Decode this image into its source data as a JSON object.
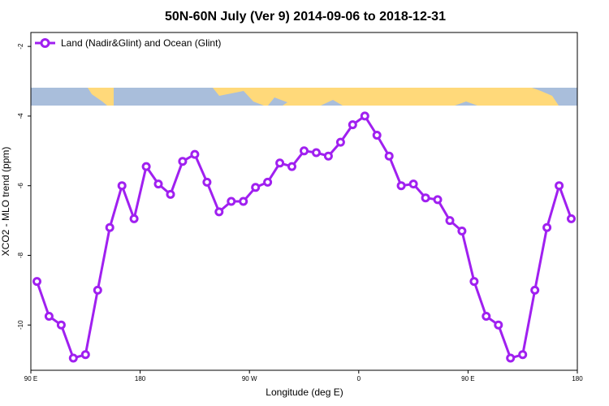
{
  "chart_data": {
    "type": "line",
    "title": "50N-60N July (Ver 9)   2014-09-06 to 2018-12-31",
    "xlabel": "Longitude (deg E)",
    "ylabel": "XCO2 - MLO trend (ppm)",
    "x_tick_labels": [
      "90 E",
      "180",
      "90 W",
      "0",
      "90 E",
      "180"
    ],
    "x_tick_values": [
      90,
      180,
      270,
      360,
      450,
      540
    ],
    "y_tick_labels": [
      "-2",
      "-4",
      "-6",
      "-8",
      "-10"
    ],
    "y_tick_values": [
      -2,
      -4,
      -6,
      -8,
      -10
    ],
    "xlim": [
      90,
      540
    ],
    "ylim": [
      -11.3,
      -1.6
    ],
    "legend_position": "top-left",
    "series": [
      {
        "name": "Land (Nadir&Glint) and Ocean (Glint)",
        "color": "#a020f0",
        "x": [
          95,
          105,
          115,
          125,
          135,
          145,
          155,
          165,
          175,
          185,
          195,
          205,
          215,
          225,
          235,
          245,
          255,
          265,
          275,
          285,
          295,
          305,
          315,
          325,
          335,
          345,
          355,
          365,
          375,
          385,
          395,
          405,
          415,
          425,
          435,
          445,
          455,
          465,
          475,
          485,
          495,
          505,
          515,
          525,
          535
        ],
        "y": [
          -8.75,
          -9.75,
          -10.0,
          -10.95,
          -10.85,
          -9.0,
          -7.2,
          -6.0,
          -6.95,
          -5.45,
          -5.95,
          -6.25,
          -5.3,
          -5.1,
          -5.9,
          -6.75,
          -6.45,
          -6.45,
          -6.05,
          -5.9,
          -5.35,
          -5.45,
          -5.0,
          -5.05,
          -5.15,
          -4.75,
          -4.25,
          -4.0,
          -4.55,
          -5.15,
          -6.0,
          -5.95,
          -6.35,
          -6.4,
          -7.0,
          -7.3,
          -8.75,
          -9.75,
          -10.0,
          -10.95,
          -10.85,
          -9.0,
          -7.2,
          -6.0,
          -6.95
        ]
      }
    ]
  },
  "map_strip": {
    "label_colors": {
      "ocean": "#a9bedb",
      "land": "#ffd97a"
    }
  }
}
